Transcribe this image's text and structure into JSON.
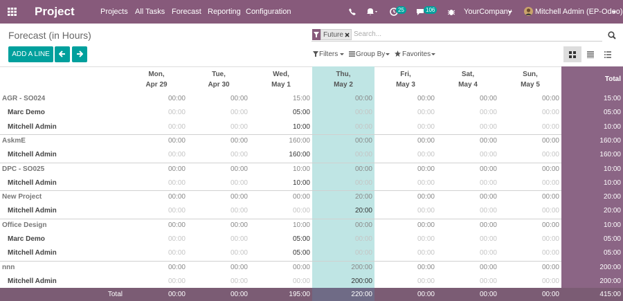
{
  "navbar": {
    "app": "Project",
    "menus": [
      "Projects",
      "All Tasks",
      "Forecast",
      "Reporting",
      "Configuration"
    ],
    "activity_badge": "25",
    "message_badge": "106",
    "company": "YourCompany",
    "user": "Mitchell Admin (EP-Odoo)"
  },
  "control_panel": {
    "title": "Forecast (in Hours)",
    "facet": "Future",
    "search_placeholder": "Search...",
    "add_button": "ADD A LINE",
    "filters": "Filters",
    "group_by": "Group By",
    "favorites": "Favorites"
  },
  "grid": {
    "columns": [
      {
        "day": "Mon,",
        "date": "Apr 29"
      },
      {
        "day": "Tue,",
        "date": "Apr 30"
      },
      {
        "day": "Wed,",
        "date": "May 1"
      },
      {
        "day": "Thu,",
        "date": "May 2"
      },
      {
        "day": "Fri,",
        "date": "May 3"
      },
      {
        "day": "Sat,",
        "date": "May 4"
      },
      {
        "day": "Sun,",
        "date": "May 5"
      }
    ],
    "total_label": "Total",
    "groups": [
      {
        "name": "AGR - SO024",
        "values": [
          "00:00",
          "00:00",
          "15:00",
          "00:00",
          "00:00",
          "00:00",
          "00:00"
        ],
        "total": "15:00",
        "rows": [
          {
            "name": "Marc Demo",
            "values": [
              "00:00",
              "00:00",
              "05:00",
              "00:00",
              "00:00",
              "00:00",
              "00:00"
            ],
            "total": "05:00"
          },
          {
            "name": "Mitchell Admin",
            "values": [
              "00:00",
              "00:00",
              "10:00",
              "00:00",
              "00:00",
              "00:00",
              "00:00"
            ],
            "total": "10:00"
          }
        ]
      },
      {
        "name": "AskmE",
        "values": [
          "00:00",
          "00:00",
          "160:00",
          "00:00",
          "00:00",
          "00:00",
          "00:00"
        ],
        "total": "160:00",
        "rows": [
          {
            "name": "Mitchell Admin",
            "values": [
              "00:00",
              "00:00",
              "160:00",
              "00:00",
              "00:00",
              "00:00",
              "00:00"
            ],
            "total": "160:00"
          }
        ]
      },
      {
        "name": "DPC - SO025",
        "values": [
          "00:00",
          "00:00",
          "10:00",
          "00:00",
          "00:00",
          "00:00",
          "00:00"
        ],
        "total": "10:00",
        "rows": [
          {
            "name": "Mitchell Admin",
            "values": [
              "00:00",
              "00:00",
              "10:00",
              "00:00",
              "00:00",
              "00:00",
              "00:00"
            ],
            "total": "10:00"
          }
        ]
      },
      {
        "name": "New Project",
        "values": [
          "00:00",
          "00:00",
          "00:00",
          "20:00",
          "00:00",
          "00:00",
          "00:00"
        ],
        "total": "20:00",
        "rows": [
          {
            "name": "Mitchell Admin",
            "values": [
              "00:00",
              "00:00",
              "00:00",
              "20:00",
              "00:00",
              "00:00",
              "00:00"
            ],
            "total": "20:00"
          }
        ]
      },
      {
        "name": "Office Design",
        "values": [
          "00:00",
          "00:00",
          "10:00",
          "00:00",
          "00:00",
          "00:00",
          "00:00"
        ],
        "total": "10:00",
        "rows": [
          {
            "name": "Marc Demo",
            "values": [
              "00:00",
              "00:00",
              "05:00",
              "00:00",
              "00:00",
              "00:00",
              "00:00"
            ],
            "total": "05:00"
          },
          {
            "name": "Mitchell Admin",
            "values": [
              "00:00",
              "00:00",
              "05:00",
              "00:00",
              "00:00",
              "00:00",
              "00:00"
            ],
            "total": "05:00"
          }
        ]
      },
      {
        "name": "nnn",
        "values": [
          "00:00",
          "00:00",
          "00:00",
          "200:00",
          "00:00",
          "00:00",
          "00:00"
        ],
        "total": "200:00",
        "rows": [
          {
            "name": "Mitchell Admin",
            "values": [
              "00:00",
              "00:00",
              "00:00",
              "200:00",
              "00:00",
              "00:00",
              "00:00"
            ],
            "total": "200:00"
          }
        ]
      }
    ],
    "footer": {
      "label": "Total",
      "values": [
        "00:00",
        "00:00",
        "195:00",
        "220:00",
        "00:00",
        "00:00",
        "00:00"
      ],
      "total": "415:00"
    }
  }
}
